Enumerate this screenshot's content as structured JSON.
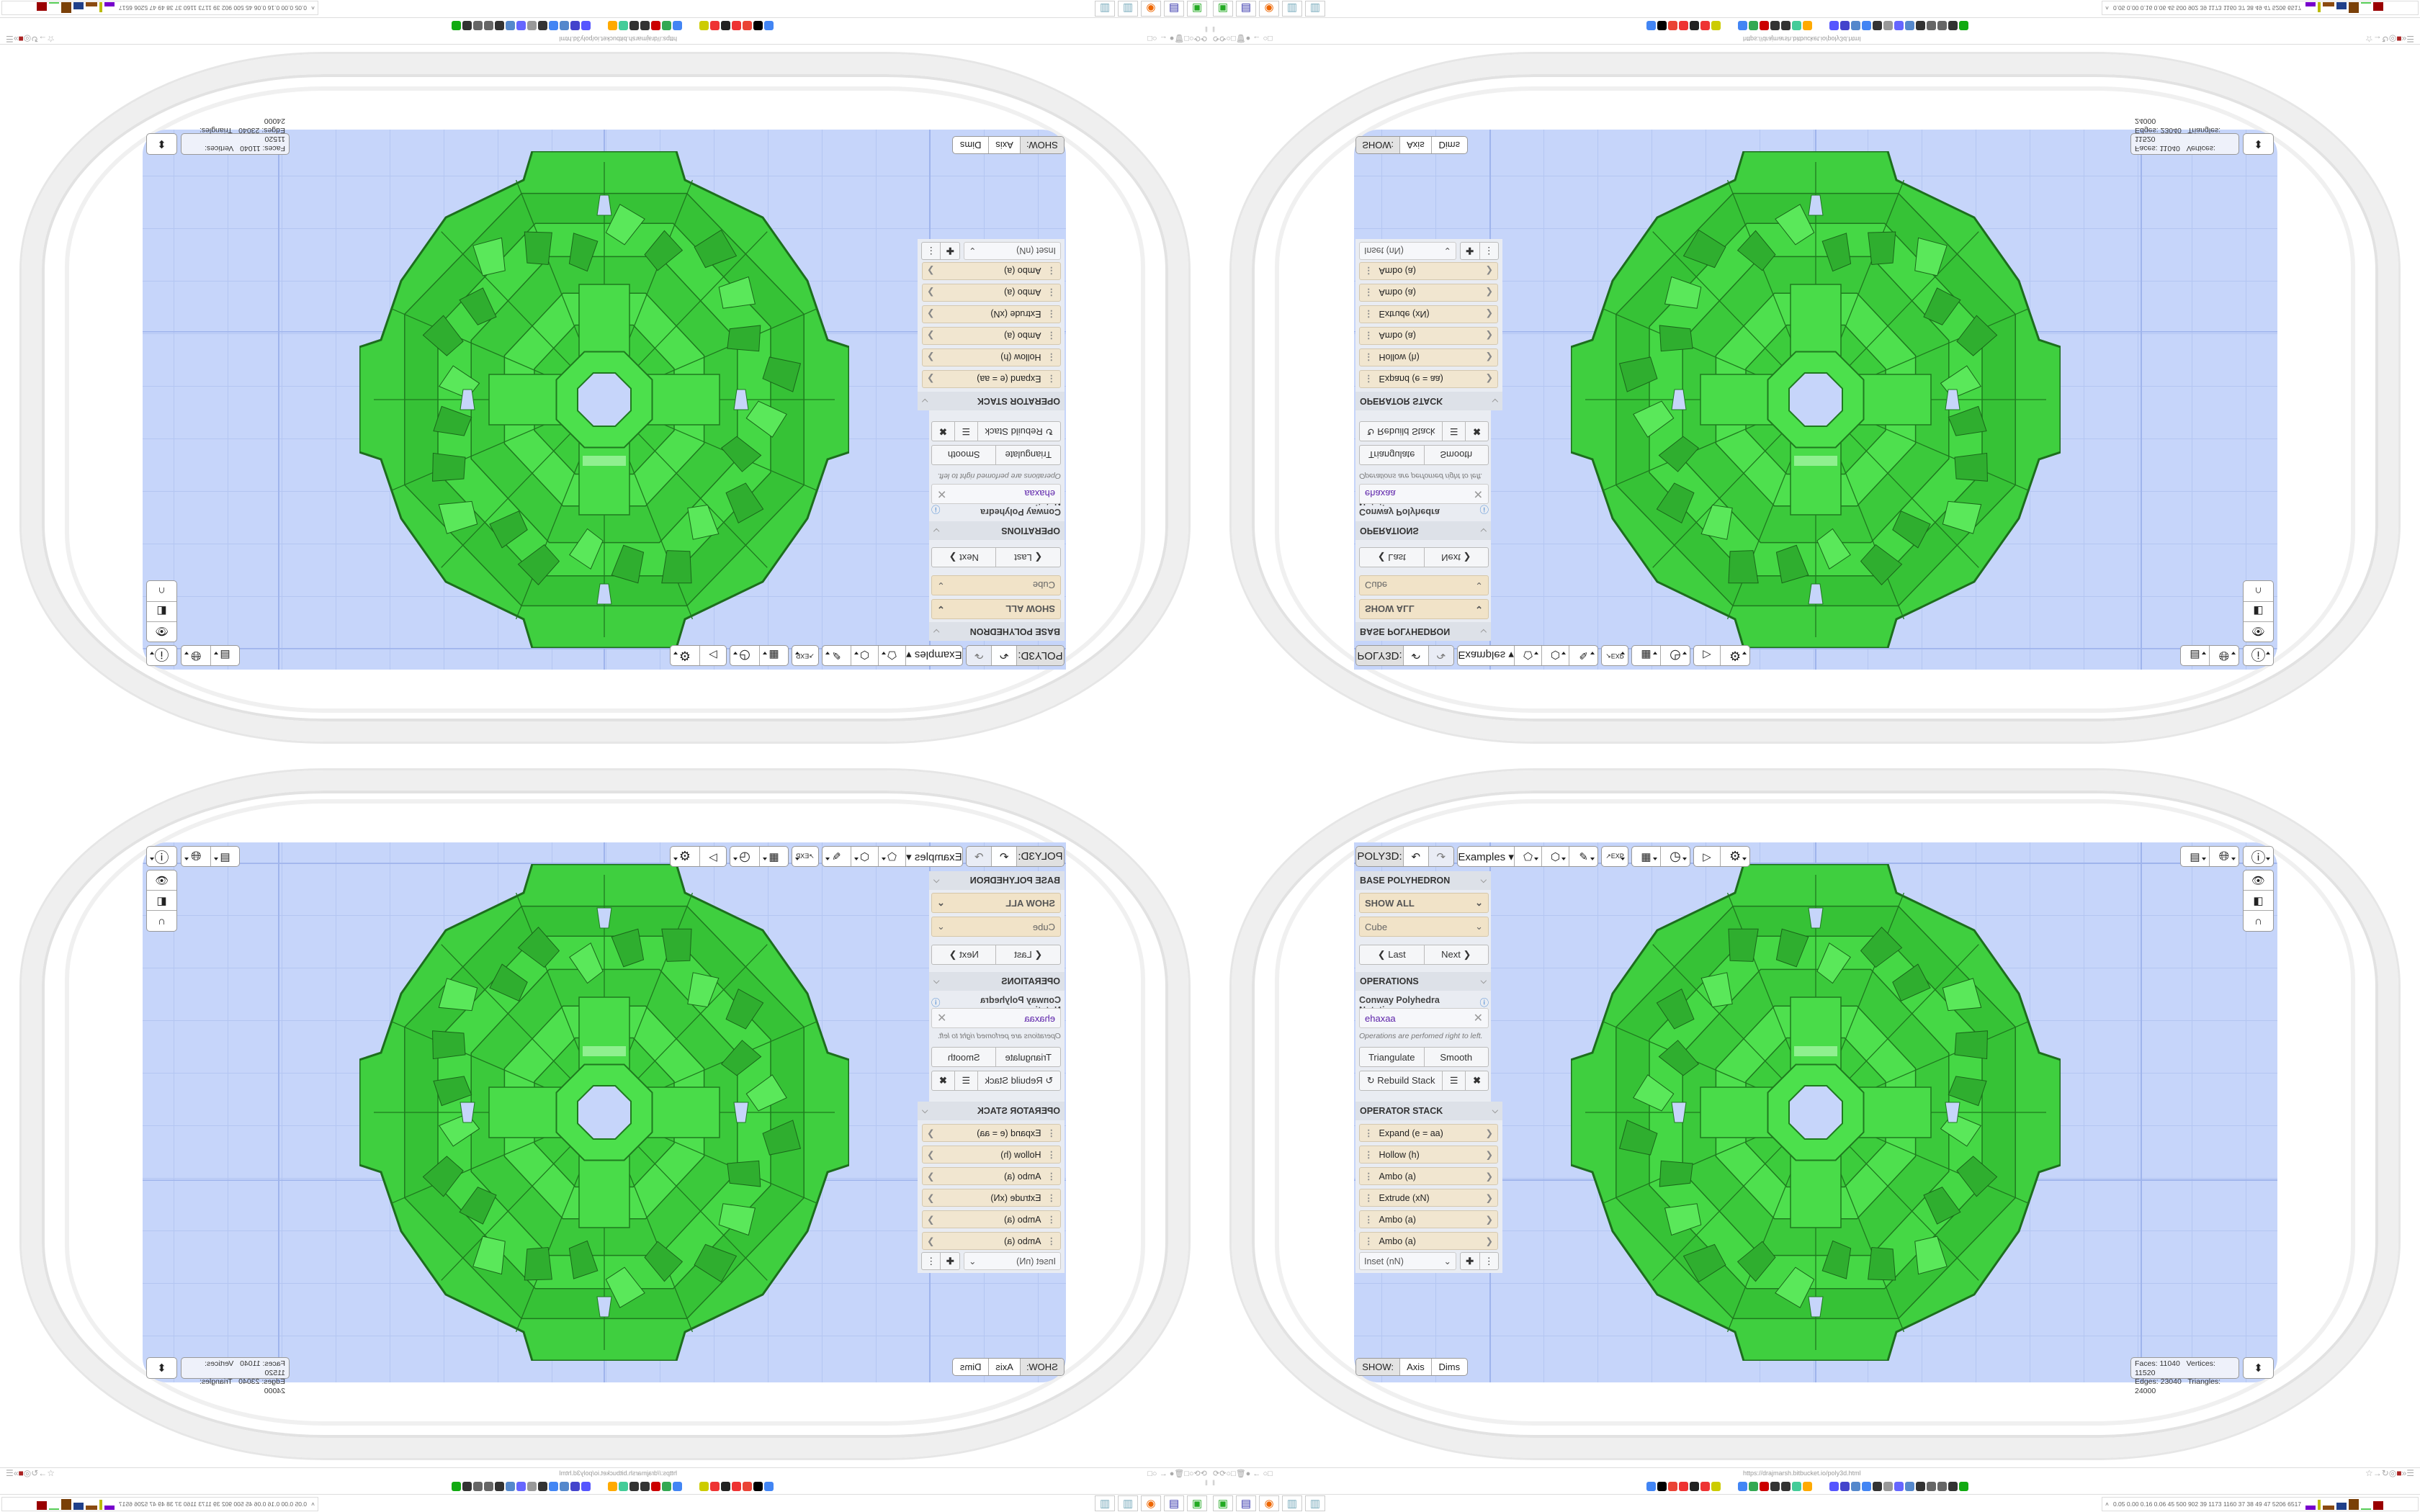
{
  "toolbar": {
    "app_label": "POLY3D:",
    "examples_label": "Examples ▾",
    "icons": [
      "undo-icon",
      "redo-icon",
      "paint-bucket-icon",
      "cube-view-icon",
      "edit-pen-icon",
      "export-icon",
      "calendar-grid-icon",
      "clock-icon",
      "play-icon",
      "settings-gear-icon"
    ],
    "right_icons": [
      "calendar-clock-icon",
      "globe-icon",
      "info-icon"
    ],
    "side_icons": [
      "eye-icon",
      "toggle-icon",
      "magnet-icon"
    ]
  },
  "base_polyhedron": {
    "title": "BASE POLYHEDRON",
    "category": "SHOW ALL",
    "base": "Cube",
    "last": "❮ Last",
    "next": "Next ❯"
  },
  "operations": {
    "title": "OPERATIONS",
    "notation_label": "Conway Polyhedra Notation:",
    "notation_value": "ehaxaa",
    "hint": "Operations are perfomed right to left.",
    "triangulate": "Triangulate",
    "smooth": "Smooth",
    "rebuild": "↻ Rebuild Stack"
  },
  "operator_stack": {
    "title": "OPERATOR STACK",
    "items": [
      "Expand (e = aa)",
      "Hollow (h)",
      "Ambo (a)",
      "Extrude (xN)",
      "Ambo (a)",
      "Ambo (a)"
    ],
    "add_select": "Inset (nN)"
  },
  "show": {
    "label": "SHOW:",
    "axis": "Axis",
    "dims": "Dims"
  },
  "stats": {
    "faces_label": "Faces:",
    "faces": "11040",
    "vertices_label": "Vertices:",
    "vertices": "11520",
    "edges_label": "Edges:",
    "edges": "23040",
    "triangles_label": "Triangles:",
    "triangles": "24000"
  },
  "browser": {
    "url": "https://drajmarsh.bitbucket.io/poly3d.html",
    "sys_stats": "0.05 0.00 0.16 0.06 45 500 902 39 1173 1160 37 38 49 47 5206 6517"
  },
  "colors": {
    "canvas": "#c6d5fa",
    "model": "#3fd13f",
    "panel_select": "#f1e3c8",
    "notation": "#5a1fa8"
  }
}
